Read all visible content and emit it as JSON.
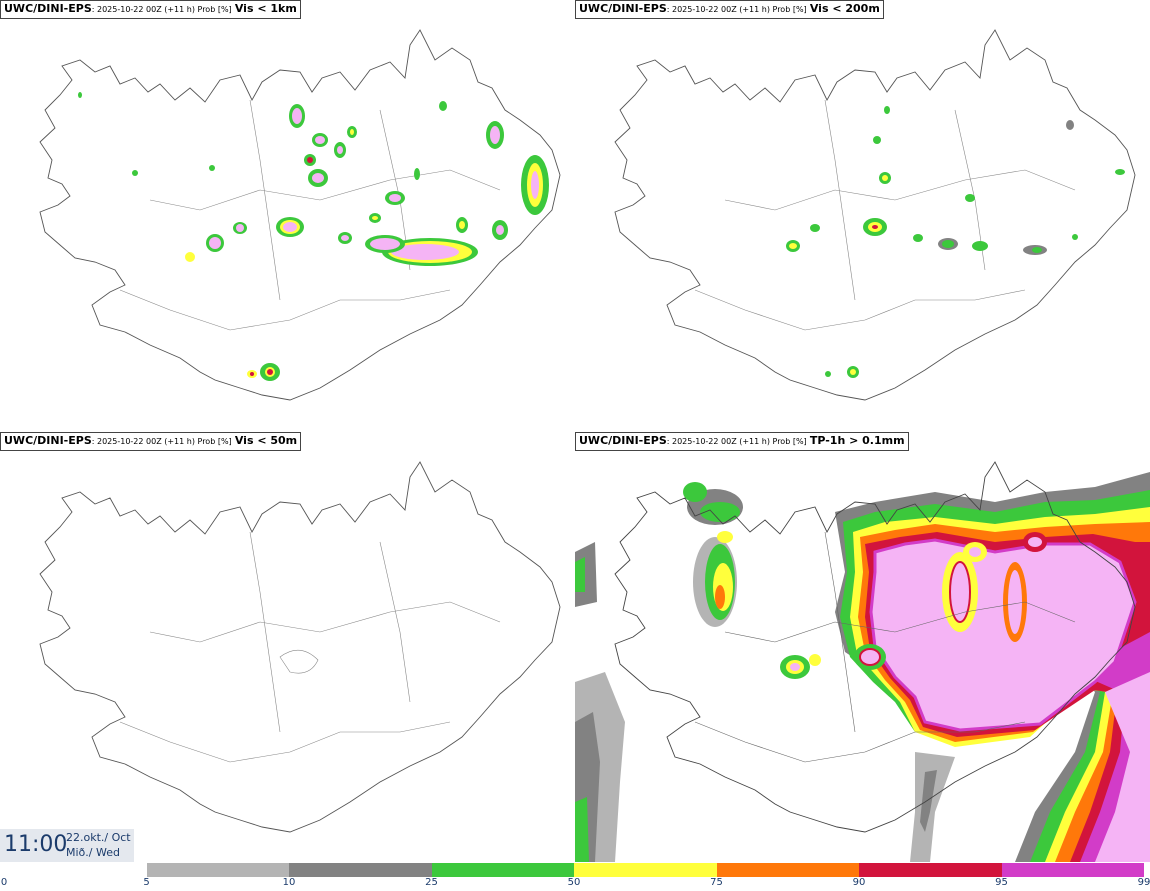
{
  "panels": [
    {
      "model": "UWC/DINI-EPS",
      "meta": ": 2025-10-22 00Z (+11 h) Prob [%]",
      "threshold": "Vis < 1km"
    },
    {
      "model": "UWC/DINI-EPS",
      "meta": ": 2025-10-22 00Z (+11 h) Prob [%]",
      "threshold": "Vis < 200m"
    },
    {
      "model": "UWC/DINI-EPS",
      "meta": ": 2025-10-22 00Z (+11 h) Prob [%]",
      "threshold": "Vis < 50m"
    },
    {
      "model": "UWC/DINI-EPS",
      "meta": ": 2025-10-22 00Z (+11 h) Prob [%]",
      "threshold": "TP-1h > 0.1mm"
    }
  ],
  "time": {
    "hour": "11:00",
    "date": "22.okt./ Oct",
    "weekday": "Mið./ Wed"
  },
  "colorbar": {
    "labels": [
      "0",
      "5",
      "10",
      "25",
      "50",
      "75",
      "90",
      "95",
      "99"
    ],
    "colors": [
      "#ffffff",
      "#b4b4b4",
      "#828282",
      "#3cc83c",
      "#ffff3c",
      "#ff780a",
      "#d2143c",
      "#d23cc8",
      "#f5b4f5"
    ]
  }
}
